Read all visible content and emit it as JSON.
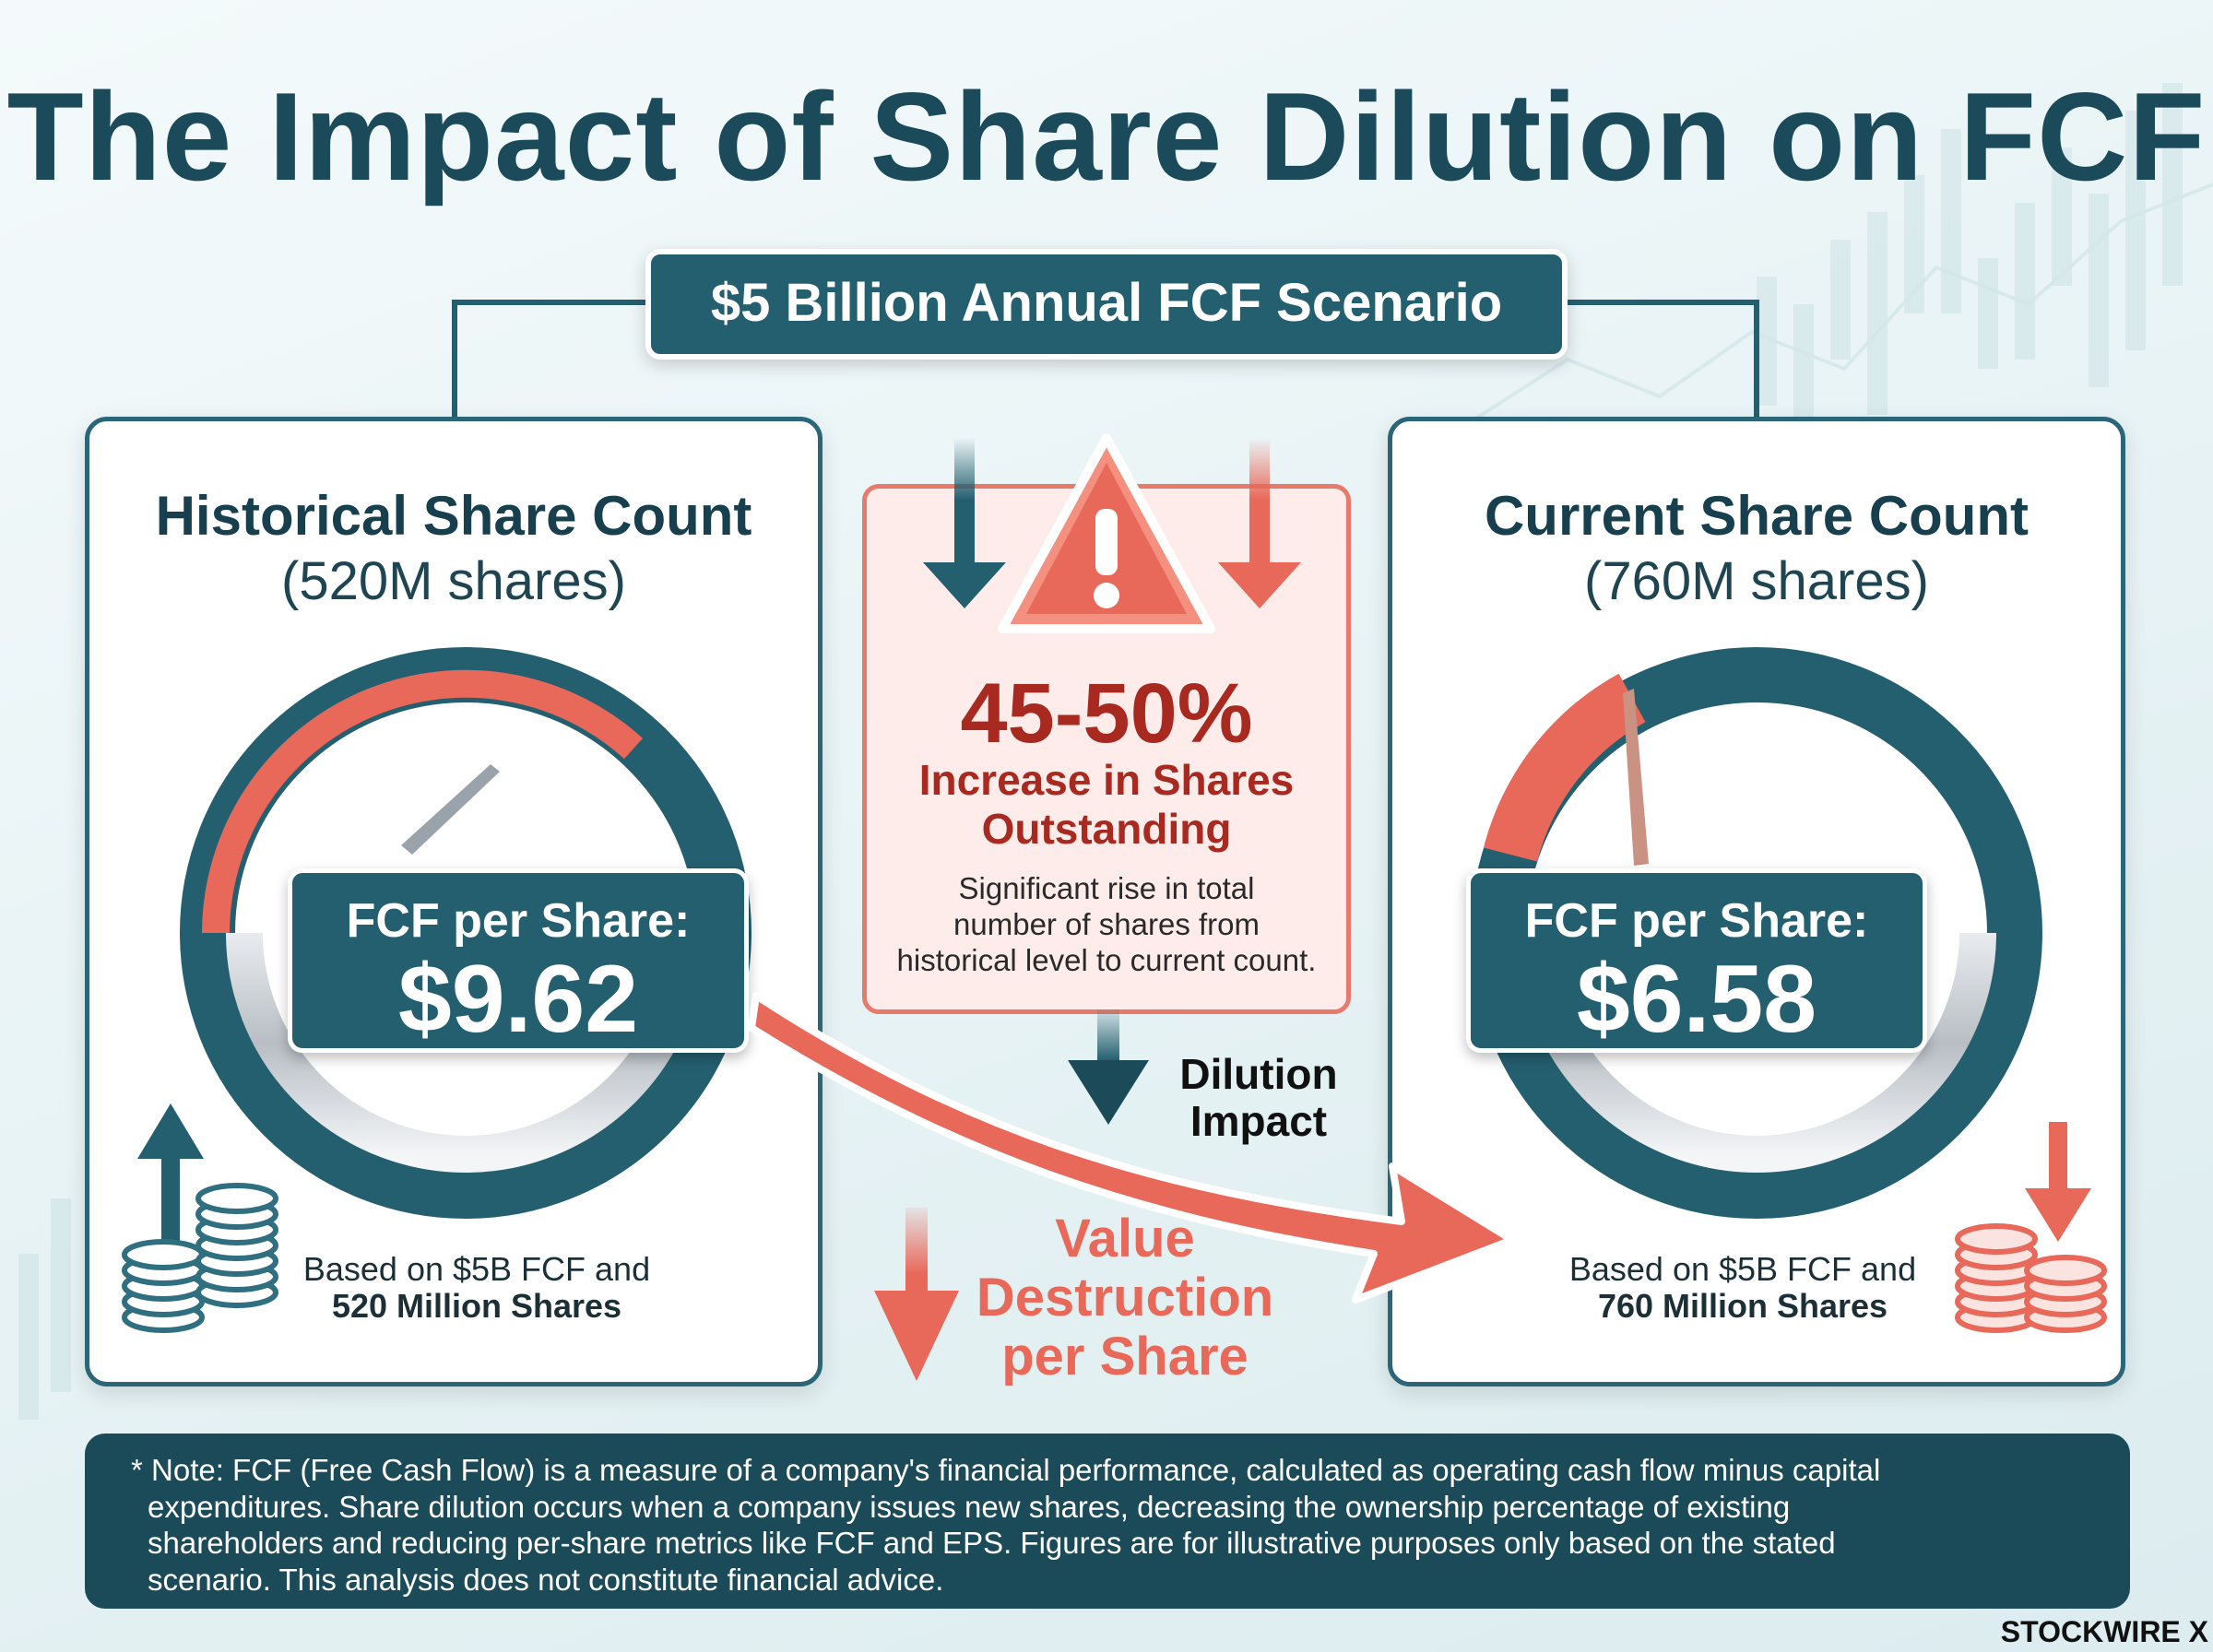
{
  "title": "The Impact of Share Dilution on FCF",
  "scenario": "$5 Billion Annual FCF Scenario",
  "historical": {
    "title": "Historical Share Count",
    "subtitle": "(520M shares)",
    "fcf_label": "FCF per Share:",
    "fcf_value": "$9.62",
    "basis_line1": "Based on $5B FCF and",
    "basis_line2": "520 Million Shares"
  },
  "current": {
    "title": "Current Share Count",
    "subtitle": "(760M shares)",
    "fcf_label": "FCF per Share:",
    "fcf_value": "$6.58",
    "basis_line1": "Based on $5B FCF and",
    "basis_line2": "760 Million Shares"
  },
  "warning": {
    "percent": "45-50%",
    "headline_line1": "Increase in Shares",
    "headline_line2": "Outstanding",
    "desc_line1": "Significant rise in total",
    "desc_line2": "number of shares from",
    "desc_line3": "historical level to current count."
  },
  "dilution": {
    "line1": "Dilution",
    "line2": "Impact"
  },
  "value_destruction": {
    "line1": "Value",
    "line2": "Destruction",
    "line3": "per Share"
  },
  "note": {
    "line1": "* Note: FCF (Free Cash Flow) is a measure of a company's financial performance, calculated as operating cash flow minus capital",
    "line2": "expenditures. Share dilution occurs when a company issues new shares, decreasing the ownership percentage of existing",
    "line3": "shareholders and reducing per-share metrics like FCF and EPS. Figures are for illustrative purposes only based on the stated",
    "line4": "scenario. This analysis does not constitute financial advice."
  },
  "brand": "STOCKWIRE X",
  "colors": {
    "teal": "#245f70",
    "dark_teal": "#1b4a59",
    "coral": "#e8685a",
    "dark_red": "#a8291f"
  }
}
